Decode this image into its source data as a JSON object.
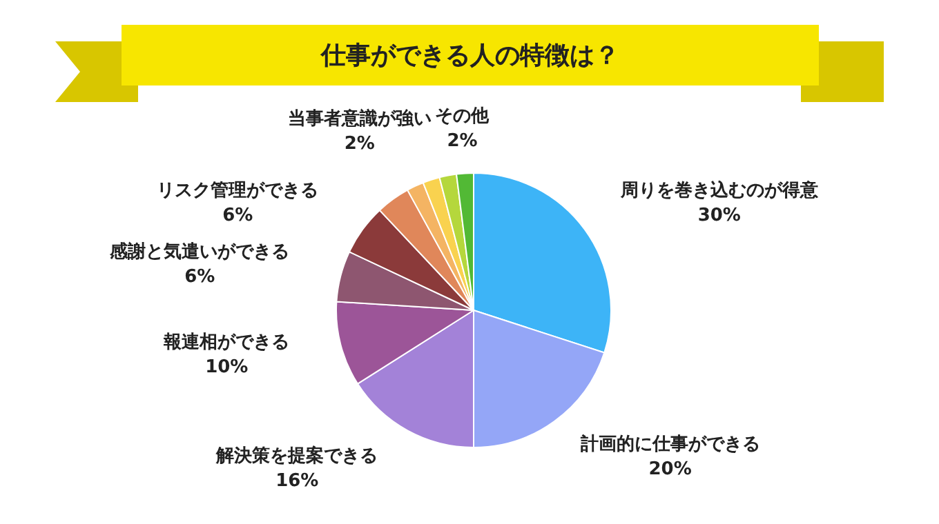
{
  "chart_data": {
    "type": "pie",
    "title": "仕事ができる人の特徴は？",
    "categories": [
      "周りを巻き込むのが得意",
      "計画的に仕事ができる",
      "解決策を提案できる",
      "報連相ができる",
      "感謝と気遣いができる",
      "リスク管理ができる",
      null,
      null,
      null,
      "当事者意識が強い",
      "その他"
    ],
    "values": [
      30,
      20,
      16,
      10,
      6,
      6,
      4,
      2,
      2,
      2,
      2
    ],
    "value_labels": [
      "30%",
      "20%",
      "16%",
      "10%",
      "6%",
      "6%",
      null,
      null,
      null,
      "2%",
      "2%"
    ],
    "colors": [
      "#3db4f7",
      "#94a6f7",
      "#a382d8",
      "#9c5598",
      "#8e5670",
      "#8b3a3a",
      "#e0875a",
      "#f4b463",
      "#f9d24f",
      "#b5d73c",
      "#52b935"
    ],
    "legend": false
  }
}
